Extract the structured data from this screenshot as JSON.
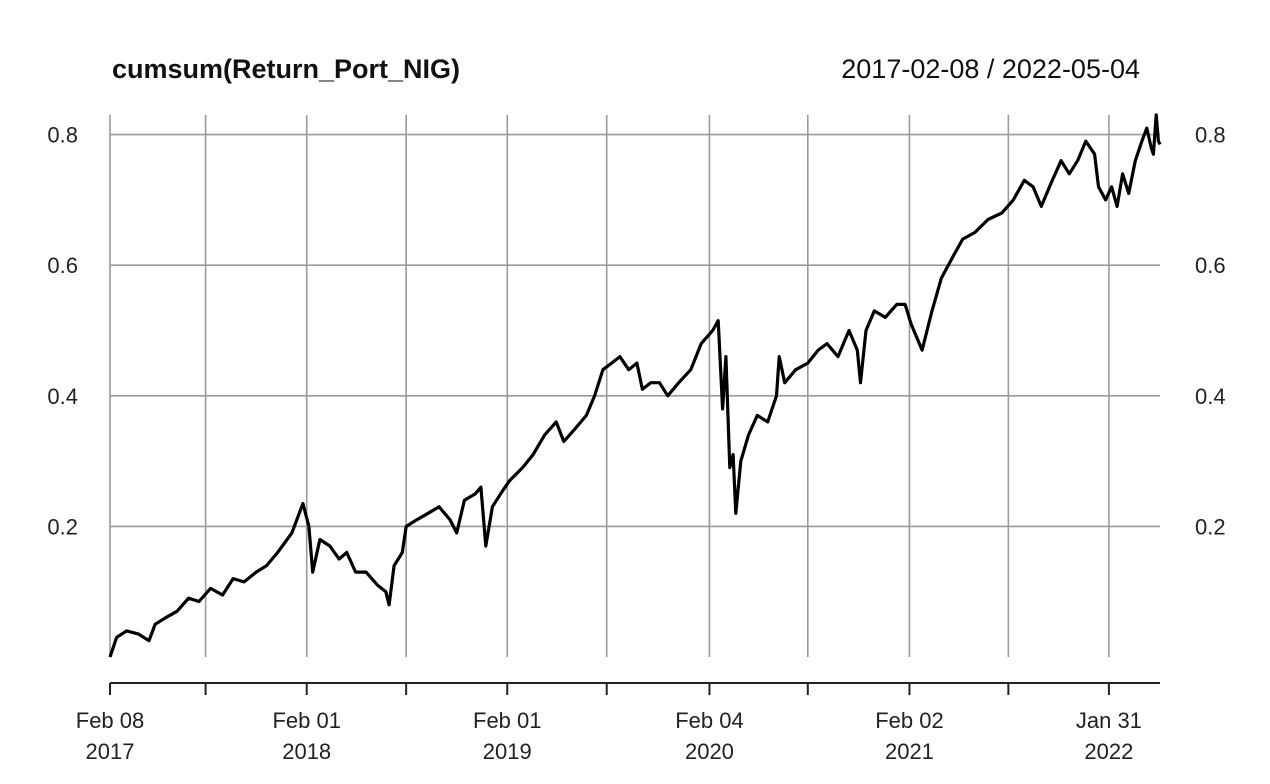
{
  "chart_data": {
    "type": "line",
    "title": "cumsum(Return_Port_NIG)",
    "date_range": "2017-02-08 / 2022-05-04",
    "xlabel": "",
    "ylabel": "",
    "xlim": [
      "2017-02-08",
      "2022-05-04"
    ],
    "ylim": [
      0.0,
      0.83
    ],
    "grid": true,
    "y_ticks": [
      0.2,
      0.4,
      0.6,
      0.8
    ],
    "y_tick_labels": [
      "0.2",
      "0.4",
      "0.6",
      "0.8"
    ],
    "x_minor_ticks": [
      "2017-08-01",
      "2018-08-01",
      "2019-08-01",
      "2020-08-01",
      "2021-08-01"
    ],
    "x_ticks": [
      {
        "date": "2017-02-08",
        "label1": "Feb 08",
        "label2": "2017"
      },
      {
        "date": "2018-02-01",
        "label1": "Feb 01",
        "label2": "2018"
      },
      {
        "date": "2019-02-01",
        "label1": "Feb 01",
        "label2": "2019"
      },
      {
        "date": "2020-02-04",
        "label1": "Feb 04",
        "label2": "2020"
      },
      {
        "date": "2021-02-02",
        "label1": "Feb 02",
        "label2": "2021"
      },
      {
        "date": "2022-01-31",
        "label1": "Jan 31",
        "label2": "2022"
      }
    ],
    "series": [
      {
        "color": "#000000",
        "points": [
          [
            "2017-02-08",
            0.0
          ],
          [
            "2017-02-20",
            0.03
          ],
          [
            "2017-03-10",
            0.04
          ],
          [
            "2017-04-01",
            0.035
          ],
          [
            "2017-04-20",
            0.025
          ],
          [
            "2017-05-01",
            0.05
          ],
          [
            "2017-05-20",
            0.06
          ],
          [
            "2017-06-10",
            0.07
          ],
          [
            "2017-07-01",
            0.09
          ],
          [
            "2017-07-20",
            0.085
          ],
          [
            "2017-08-10",
            0.105
          ],
          [
            "2017-09-01",
            0.095
          ],
          [
            "2017-09-20",
            0.12
          ],
          [
            "2017-10-10",
            0.115
          ],
          [
            "2017-11-01",
            0.13
          ],
          [
            "2017-11-20",
            0.14
          ],
          [
            "2017-12-10",
            0.16
          ],
          [
            "2018-01-05",
            0.19
          ],
          [
            "2018-01-25",
            0.235
          ],
          [
            "2018-02-05",
            0.2
          ],
          [
            "2018-02-12",
            0.13
          ],
          [
            "2018-02-25",
            0.18
          ],
          [
            "2018-03-15",
            0.17
          ],
          [
            "2018-04-01",
            0.15
          ],
          [
            "2018-04-15",
            0.16
          ],
          [
            "2018-05-01",
            0.13
          ],
          [
            "2018-05-20",
            0.13
          ],
          [
            "2018-06-10",
            0.11
          ],
          [
            "2018-06-25",
            0.1
          ],
          [
            "2018-07-01",
            0.08
          ],
          [
            "2018-07-10",
            0.14
          ],
          [
            "2018-07-25",
            0.16
          ],
          [
            "2018-08-01",
            0.2
          ],
          [
            "2018-08-20",
            0.21
          ],
          [
            "2018-09-10",
            0.22
          ],
          [
            "2018-09-30",
            0.23
          ],
          [
            "2018-10-20",
            0.21
          ],
          [
            "2018-11-01",
            0.19
          ],
          [
            "2018-11-15",
            0.24
          ],
          [
            "2018-12-05",
            0.25
          ],
          [
            "2018-12-15",
            0.26
          ],
          [
            "2018-12-24",
            0.17
          ],
          [
            "2019-01-05",
            0.23
          ],
          [
            "2019-01-20",
            0.25
          ],
          [
            "2019-02-05",
            0.27
          ],
          [
            "2019-03-01",
            0.29
          ],
          [
            "2019-03-20",
            0.31
          ],
          [
            "2019-04-10",
            0.34
          ],
          [
            "2019-05-01",
            0.36
          ],
          [
            "2019-05-15",
            0.33
          ],
          [
            "2019-06-05",
            0.35
          ],
          [
            "2019-06-25",
            0.37
          ],
          [
            "2019-07-10",
            0.4
          ],
          [
            "2019-07-25",
            0.44
          ],
          [
            "2019-08-10",
            0.45
          ],
          [
            "2019-08-25",
            0.46
          ],
          [
            "2019-09-10",
            0.44
          ],
          [
            "2019-09-25",
            0.45
          ],
          [
            "2019-10-05",
            0.41
          ],
          [
            "2019-10-20",
            0.42
          ],
          [
            "2019-11-05",
            0.42
          ],
          [
            "2019-11-20",
            0.4
          ],
          [
            "2019-12-10",
            0.42
          ],
          [
            "2020-01-01",
            0.44
          ],
          [
            "2020-01-20",
            0.48
          ],
          [
            "2020-02-10",
            0.5
          ],
          [
            "2020-02-20",
            0.515
          ],
          [
            "2020-02-28",
            0.38
          ],
          [
            "2020-03-05",
            0.46
          ],
          [
            "2020-03-12",
            0.29
          ],
          [
            "2020-03-18",
            0.31
          ],
          [
            "2020-03-23",
            0.22
          ],
          [
            "2020-04-01",
            0.3
          ],
          [
            "2020-04-15",
            0.34
          ],
          [
            "2020-05-01",
            0.37
          ],
          [
            "2020-05-20",
            0.36
          ],
          [
            "2020-06-05",
            0.4
          ],
          [
            "2020-06-10",
            0.46
          ],
          [
            "2020-06-20",
            0.42
          ],
          [
            "2020-07-10",
            0.44
          ],
          [
            "2020-08-01",
            0.45
          ],
          [
            "2020-08-20",
            0.47
          ],
          [
            "2020-09-05",
            0.48
          ],
          [
            "2020-09-25",
            0.46
          ],
          [
            "2020-10-15",
            0.5
          ],
          [
            "2020-10-30",
            0.47
          ],
          [
            "2020-11-05",
            0.42
          ],
          [
            "2020-11-15",
            0.5
          ],
          [
            "2020-11-30",
            0.53
          ],
          [
            "2020-12-20",
            0.52
          ],
          [
            "2021-01-10",
            0.54
          ],
          [
            "2021-01-25",
            0.54
          ],
          [
            "2021-02-05",
            0.51
          ],
          [
            "2021-02-25",
            0.47
          ],
          [
            "2021-03-15",
            0.53
          ],
          [
            "2021-04-01",
            0.58
          ],
          [
            "2021-04-20",
            0.61
          ],
          [
            "2021-05-10",
            0.64
          ],
          [
            "2021-06-01",
            0.65
          ],
          [
            "2021-06-25",
            0.67
          ],
          [
            "2021-07-20",
            0.68
          ],
          [
            "2021-08-10",
            0.7
          ],
          [
            "2021-08-30",
            0.73
          ],
          [
            "2021-09-15",
            0.72
          ],
          [
            "2021-09-30",
            0.69
          ],
          [
            "2021-10-20",
            0.73
          ],
          [
            "2021-11-05",
            0.76
          ],
          [
            "2021-11-20",
            0.74
          ],
          [
            "2021-12-05",
            0.76
          ],
          [
            "2021-12-20",
            0.79
          ],
          [
            "2022-01-05",
            0.77
          ],
          [
            "2022-01-12",
            0.72
          ],
          [
            "2022-01-25",
            0.7
          ],
          [
            "2022-02-05",
            0.72
          ],
          [
            "2022-02-15",
            0.69
          ],
          [
            "2022-02-25",
            0.74
          ],
          [
            "2022-03-08",
            0.71
          ],
          [
            "2022-03-20",
            0.76
          ],
          [
            "2022-04-01",
            0.79
          ],
          [
            "2022-04-10",
            0.81
          ],
          [
            "2022-04-18",
            0.78
          ],
          [
            "2022-04-22",
            0.77
          ],
          [
            "2022-04-27",
            0.83
          ],
          [
            "2022-05-01",
            0.79
          ],
          [
            "2022-05-04",
            0.785
          ]
        ]
      }
    ]
  }
}
